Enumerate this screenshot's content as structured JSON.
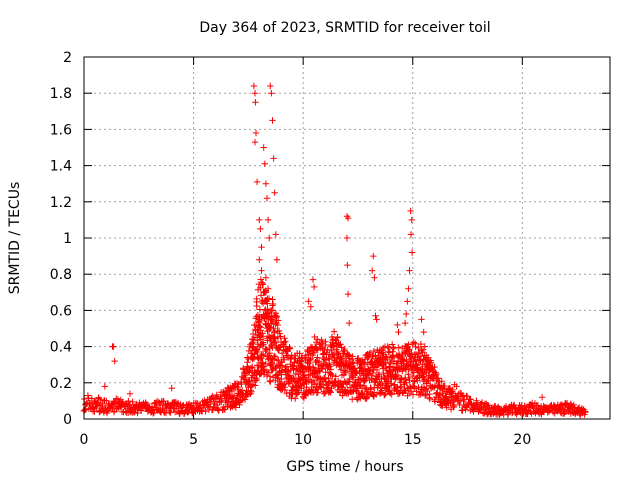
{
  "chart_data": {
    "type": "scatter",
    "marker": "plus",
    "color": "#ff0000",
    "title": "Day 364 of 2023, SRMTID for receiver toil",
    "xlabel": "GPS time / hours",
    "ylabel": "SRMTID / TECUs",
    "xlim": [
      0,
      24
    ],
    "ylim": [
      0,
      2
    ],
    "xticks": [
      0,
      5,
      10,
      15,
      20
    ],
    "xtick_labels": [
      "0",
      "5",
      "10",
      "15",
      "20"
    ],
    "yticks": [
      0,
      0.2,
      0.4,
      0.6,
      0.8,
      1,
      1.2,
      1.4,
      1.6,
      1.8,
      2
    ],
    "ytick_labels": [
      "0",
      "0.2",
      "0.4",
      "0.6",
      "0.8",
      "1",
      "1.2",
      "1.4",
      "1.6",
      "1.8",
      "2"
    ],
    "grid": true,
    "envelope": [
      [
        0.0,
        0.1
      ],
      [
        0.5,
        0.1
      ],
      [
        1.0,
        0.08
      ],
      [
        1.5,
        0.09
      ],
      [
        2.0,
        0.08
      ],
      [
        2.5,
        0.07
      ],
      [
        3.0,
        0.07
      ],
      [
        3.5,
        0.08
      ],
      [
        4.0,
        0.08
      ],
      [
        4.5,
        0.06
      ],
      [
        5.0,
        0.07
      ],
      [
        5.5,
        0.08
      ],
      [
        6.0,
        0.11
      ],
      [
        6.5,
        0.13
      ],
      [
        7.0,
        0.16
      ],
      [
        7.5,
        0.28
      ],
      [
        7.8,
        0.45
      ],
      [
        8.0,
        0.62
      ],
      [
        8.3,
        0.55
      ],
      [
        8.6,
        0.5
      ],
      [
        9.0,
        0.38
      ],
      [
        9.5,
        0.28
      ],
      [
        10.0,
        0.28
      ],
      [
        10.5,
        0.35
      ],
      [
        11.0,
        0.33
      ],
      [
        11.5,
        0.38
      ],
      [
        12.0,
        0.28
      ],
      [
        12.5,
        0.26
      ],
      [
        13.0,
        0.28
      ],
      [
        13.5,
        0.3
      ],
      [
        14.0,
        0.32
      ],
      [
        14.5,
        0.3
      ],
      [
        15.0,
        0.33
      ],
      [
        15.5,
        0.32
      ],
      [
        16.0,
        0.22
      ],
      [
        16.5,
        0.14
      ],
      [
        17.0,
        0.12
      ],
      [
        17.5,
        0.1
      ],
      [
        18.0,
        0.08
      ],
      [
        18.5,
        0.06
      ],
      [
        19.0,
        0.05
      ],
      [
        19.5,
        0.06
      ],
      [
        20.0,
        0.06
      ],
      [
        20.5,
        0.07
      ],
      [
        21.0,
        0.06
      ],
      [
        21.5,
        0.06
      ],
      [
        22.0,
        0.07
      ],
      [
        22.5,
        0.06
      ],
      [
        22.9,
        0.04
      ]
    ],
    "spikes": [
      {
        "x": 0.95,
        "y": 0.18
      },
      {
        "x": 1.3,
        "y": 0.4
      },
      {
        "x": 1.35,
        "y": 0.4
      },
      {
        "x": 1.4,
        "y": 0.32
      },
      {
        "x": 2.1,
        "y": 0.14
      },
      {
        "x": 4.0,
        "y": 0.17
      },
      {
        "x": 7.75,
        "y": 1.84
      },
      {
        "x": 7.8,
        "y": 1.8
      },
      {
        "x": 7.82,
        "y": 1.75
      },
      {
        "x": 7.85,
        "y": 1.58
      },
      {
        "x": 7.8,
        "y": 1.53
      },
      {
        "x": 7.9,
        "y": 1.31
      },
      {
        "x": 8.0,
        "y": 1.1
      },
      {
        "x": 8.05,
        "y": 1.05
      },
      {
        "x": 8.1,
        "y": 0.95
      },
      {
        "x": 8.2,
        "y": 1.5
      },
      {
        "x": 8.25,
        "y": 1.41
      },
      {
        "x": 8.3,
        "y": 1.3
      },
      {
        "x": 8.35,
        "y": 1.22
      },
      {
        "x": 8.4,
        "y": 1.1
      },
      {
        "x": 8.45,
        "y": 1.0
      },
      {
        "x": 8.5,
        "y": 1.84
      },
      {
        "x": 8.55,
        "y": 1.8
      },
      {
        "x": 8.6,
        "y": 1.65
      },
      {
        "x": 8.65,
        "y": 1.44
      },
      {
        "x": 8.7,
        "y": 1.25
      },
      {
        "x": 8.75,
        "y": 1.02
      },
      {
        "x": 8.8,
        "y": 0.88
      },
      {
        "x": 8.0,
        "y": 0.88
      },
      {
        "x": 8.1,
        "y": 0.82
      },
      {
        "x": 8.3,
        "y": 0.78
      },
      {
        "x": 8.4,
        "y": 0.72
      },
      {
        "x": 8.6,
        "y": 0.66
      },
      {
        "x": 10.25,
        "y": 0.65
      },
      {
        "x": 10.35,
        "y": 0.62
      },
      {
        "x": 10.45,
        "y": 0.77
      },
      {
        "x": 10.5,
        "y": 0.73
      },
      {
        "x": 12.0,
        "y": 1.12
      },
      {
        "x": 12.05,
        "y": 1.11
      },
      {
        "x": 12.0,
        "y": 1.0
      },
      {
        "x": 12.02,
        "y": 0.85
      },
      {
        "x": 12.05,
        "y": 0.69
      },
      {
        "x": 12.1,
        "y": 0.53
      },
      {
        "x": 13.2,
        "y": 0.9
      },
      {
        "x": 13.15,
        "y": 0.82
      },
      {
        "x": 13.25,
        "y": 0.78
      },
      {
        "x": 13.3,
        "y": 0.57
      },
      {
        "x": 13.35,
        "y": 0.55
      },
      {
        "x": 14.3,
        "y": 0.52
      },
      {
        "x": 14.35,
        "y": 0.48
      },
      {
        "x": 14.9,
        "y": 1.15
      },
      {
        "x": 14.95,
        "y": 1.1
      },
      {
        "x": 14.92,
        "y": 1.02
      },
      {
        "x": 14.97,
        "y": 0.92
      },
      {
        "x": 14.85,
        "y": 0.82
      },
      {
        "x": 14.8,
        "y": 0.72
      },
      {
        "x": 14.75,
        "y": 0.65
      },
      {
        "x": 14.7,
        "y": 0.58
      },
      {
        "x": 14.65,
        "y": 0.53
      },
      {
        "x": 15.4,
        "y": 0.55
      },
      {
        "x": 15.5,
        "y": 0.48
      },
      {
        "x": 16.9,
        "y": 0.19
      },
      {
        "x": 17.0,
        "y": 0.18
      },
      {
        "x": 20.9,
        "y": 0.12
      }
    ]
  }
}
